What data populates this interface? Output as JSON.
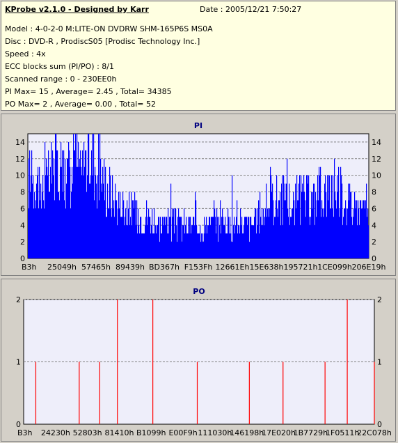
{
  "header": {
    "title": "KProbe v2.1.0 - Designed by Karr",
    "date": "Date : 2005/12/21 7:50:27",
    "model": "Model : 4-0-2-0 M:LITE-ON DVDRW SHM-165P6S MS0A",
    "disc": "Disc : DVD-R , ProdiscS05   [Prodisc Technology Inc.]",
    "speed": "Speed : 4x",
    "ecc": "ECC blocks sum (PI/PO) : 8/1",
    "range": "Scanned range : 0 - 230EE0h",
    "pi_stats": "PI Max= 15 , Average= 2.45 , Total= 34385",
    "po_stats": "PO Max= 2 , Average= 0.00 , Total= 52"
  },
  "colors": {
    "pi_bar": "#0000ff",
    "po_bar": "#ff0000",
    "plot_bg": "#eeeefa",
    "title_text": "#000080"
  },
  "chart_data": [
    {
      "type": "bar",
      "title": "PI",
      "ylim": [
        0,
        15
      ],
      "yticks": [
        0,
        2,
        4,
        6,
        8,
        10,
        12,
        14
      ],
      "xticks": [
        "B3h",
        "25049h",
        "57465h",
        "89439h",
        "BD367h",
        "F153Fh",
        "12661Eh",
        "15E638h",
        "195721h",
        "1CE099h",
        "206E19h"
      ],
      "grid": true,
      "x": [
        0,
        2,
        4,
        6,
        8,
        10,
        12,
        14,
        16,
        18,
        20,
        22,
        24,
        26,
        28,
        30,
        32,
        34,
        36,
        38,
        40,
        42,
        44,
        46,
        48,
        50,
        52,
        54,
        56,
        58,
        60,
        62,
        64,
        66,
        68,
        70,
        72,
        74,
        76,
        78,
        80,
        82,
        84,
        86,
        88,
        90,
        92,
        94,
        96,
        98,
        100
      ],
      "values": [
        9,
        10,
        8,
        9,
        12,
        11,
        10,
        12,
        11,
        13,
        11,
        9,
        8,
        7,
        6,
        6,
        5,
        5,
        5,
        4,
        4,
        4,
        4,
        4,
        4,
        4,
        4,
        4,
        4,
        4,
        4,
        4,
        4,
        4,
        5,
        6,
        7,
        7,
        7,
        6,
        7,
        7,
        7,
        8,
        8,
        9,
        8,
        7,
        6,
        6,
        6
      ],
      "peaks": [
        [
          1,
          13
        ],
        [
          5,
          14
        ],
        [
          8,
          14
        ],
        [
          10,
          13
        ],
        [
          12,
          13
        ],
        [
          17,
          11
        ],
        [
          22,
          9
        ],
        [
          42,
          9
        ],
        [
          49,
          8
        ],
        [
          60,
          10
        ],
        [
          68,
          8
        ],
        [
          76,
          12
        ],
        [
          82,
          8
        ],
        [
          90,
          12
        ],
        [
          92,
          9
        ],
        [
          96,
          8
        ]
      ]
    },
    {
      "type": "bar",
      "title": "PO",
      "ylim": [
        0,
        2
      ],
      "yticks": [
        0,
        1,
        2
      ],
      "xticks": [
        "B3h",
        "24230h",
        "52803h",
        "81410h",
        "B1099h",
        "E00F9h",
        "111030h",
        "146198h",
        "17E020h",
        "1B7729h",
        "1F0511h",
        "22C078h"
      ],
      "grid": true,
      "x": [
        3.5,
        16.0,
        21.9,
        27.0,
        37.2,
        50.0,
        65.0,
        74.7,
        86.8,
        93.2,
        101.0
      ],
      "values": [
        1,
        1,
        1,
        2,
        2,
        1,
        1,
        1,
        1,
        2,
        1
      ]
    }
  ]
}
